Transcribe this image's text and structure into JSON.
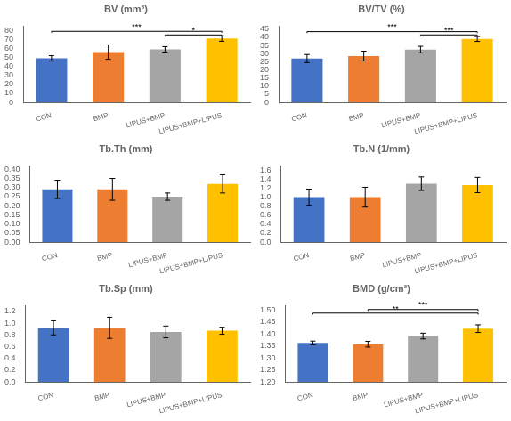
{
  "chart_data": [
    {
      "type": "bar",
      "title": "BV (mm³)",
      "categories": [
        "CON",
        "BMP",
        "LIPUS+BMP",
        "LIPUS+BMP+LIPUS"
      ],
      "values": [
        49,
        56,
        59,
        71
      ],
      "errors": [
        3,
        8,
        3,
        3
      ],
      "colors": [
        "#4472C4",
        "#ED7D31",
        "#A5A5A5",
        "#FFC000"
      ],
      "ylim": [
        0,
        85
      ],
      "yticks": [
        0,
        10,
        20,
        30,
        40,
        50,
        60,
        70,
        80
      ],
      "grid": false,
      "annotations": [
        {
          "label": "***",
          "from": "CON",
          "to": "LIPUS+BMP+LIPUS",
          "y": 79
        },
        {
          "label": "*",
          "from": "LIPUS+BMP",
          "to": "LIPUS+BMP+LIPUS",
          "y": 75
        }
      ]
    },
    {
      "type": "bar",
      "title": "BV/TV (%)",
      "categories": [
        "CON",
        "BMP",
        "LIPUS+BMP",
        "LIPUS+BMP+LIPUS"
      ],
      "values": [
        27,
        28.5,
        32.5,
        39
      ],
      "errors": [
        2.5,
        3,
        2,
        1.5
      ],
      "colors": [
        "#4472C4",
        "#ED7D31",
        "#A5A5A5",
        "#FFC000"
      ],
      "ylim": [
        0,
        47
      ],
      "yticks": [
        0,
        5,
        10,
        15,
        20,
        25,
        30,
        35,
        40,
        45
      ],
      "grid": false,
      "annotations": [
        {
          "label": "***",
          "from": "CON",
          "to": "LIPUS+BMP+LIPUS",
          "y": 43.5
        },
        {
          "label": "***",
          "from": "LIPUS+BMP",
          "to": "LIPUS+BMP+LIPUS",
          "y": 41.5
        }
      ]
    },
    {
      "type": "bar",
      "title": "Tb.Th (mm)",
      "categories": [
        "CON",
        "BMP",
        "LIPUS+BMP",
        "LIPUS+BMP+LIPUS"
      ],
      "values": [
        0.29,
        0.29,
        0.25,
        0.32
      ],
      "errors": [
        0.05,
        0.06,
        0.02,
        0.05
      ],
      "colors": [
        "#4472C4",
        "#ED7D31",
        "#A5A5A5",
        "#FFC000"
      ],
      "ylim": [
        0,
        0.42
      ],
      "yticks": [
        {
          "value": 0,
          "label": "0.00"
        },
        0.05,
        {
          "value": 0.1,
          "label": "0.10"
        },
        0.15,
        {
          "value": 0.2,
          "label": "0.20"
        },
        0.25,
        {
          "value": 0.3,
          "label": "0.30"
        },
        0.35,
        {
          "value": 0.4,
          "label": "0.40"
        }
      ],
      "grid": false,
      "annotations": []
    },
    {
      "type": "bar",
      "title": "Tb.N (1/mm)",
      "categories": [
        "CON",
        "BMP",
        "LIPUS+BMP",
        "LIPUS+BMP+LIPUS"
      ],
      "values": [
        1.0,
        1.0,
        1.3,
        1.27
      ],
      "errors": [
        0.18,
        0.22,
        0.15,
        0.17
      ],
      "colors": [
        "#4472C4",
        "#ED7D31",
        "#A5A5A5",
        "#FFC000"
      ],
      "ylim": [
        0,
        1.7
      ],
      "yticks": [
        {
          "value": 0,
          "label": "0.0"
        },
        0.2,
        0.4,
        0.6,
        0.8,
        {
          "value": 1.0,
          "label": "1.0"
        },
        1.2,
        1.4,
        1.6
      ],
      "grid": false,
      "annotations": []
    },
    {
      "type": "bar",
      "title": "Tb.Sp (mm)",
      "categories": [
        "CON",
        "BMP",
        "LIPUS+BMP",
        "LIPUS+BMP+LIPUS"
      ],
      "values": [
        0.92,
        0.92,
        0.85,
        0.87
      ],
      "errors": [
        0.12,
        0.18,
        0.1,
        0.06
      ],
      "colors": [
        "#4472C4",
        "#ED7D31",
        "#A5A5A5",
        "#FFC000"
      ],
      "ylim": [
        0,
        1.3
      ],
      "yticks": [
        {
          "value": 0,
          "label": "0.0"
        },
        0.2,
        0.4,
        0.6,
        0.8,
        {
          "value": 1.0,
          "label": "1.0"
        },
        1.2
      ],
      "grid": false,
      "annotations": []
    },
    {
      "type": "bar",
      "title": "BMD (g/cm³)",
      "categories": [
        "CON",
        "BMP",
        "LIPUS+BMP",
        "LIPUS+BMP+LIPUS"
      ],
      "values": [
        1.363,
        1.358,
        1.392,
        1.423
      ],
      "errors": [
        0.008,
        0.012,
        0.012,
        0.016
      ],
      "colors": [
        "#4472C4",
        "#ED7D31",
        "#A5A5A5",
        "#FFC000"
      ],
      "ylim": [
        1.2,
        1.52
      ],
      "yticks": [
        {
          "value": 1.2,
          "label": "1.20"
        },
        1.25,
        {
          "value": 1.3,
          "label": "1.30"
        },
        1.35,
        {
          "value": 1.4,
          "label": "1.40"
        },
        1.45,
        {
          "value": 1.5,
          "label": "1.50"
        }
      ],
      "grid": false,
      "annotations": [
        {
          "label": "**",
          "from": "CON",
          "to": "LIPUS+BMP+LIPUS",
          "y": 1.488
        },
        {
          "label": "***",
          "from": "BMP",
          "to": "LIPUS+BMP+LIPUS",
          "y": 1.503
        }
      ]
    }
  ]
}
